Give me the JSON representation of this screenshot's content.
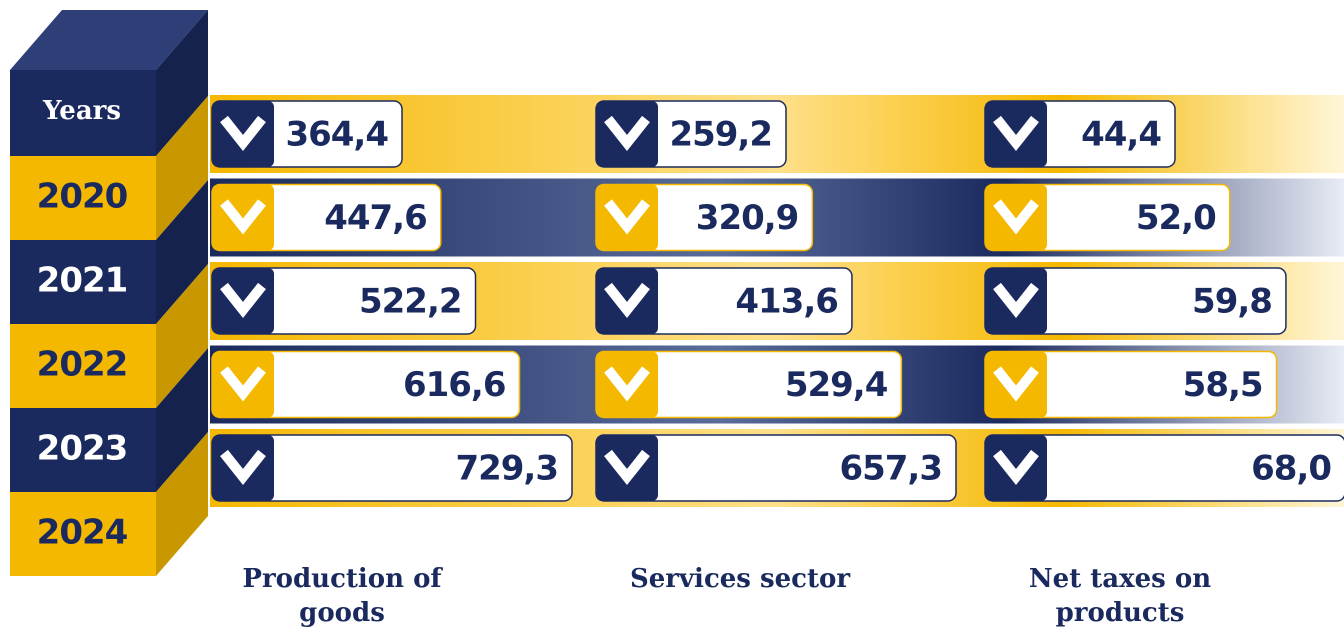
{
  "chart_data": {
    "type": "bar",
    "orientation": "horizontal",
    "header": "Years",
    "categories": [
      "2020",
      "2021",
      "2022",
      "2023",
      "2024"
    ],
    "series": [
      {
        "name": "Production of goods",
        "values": [
          364.4,
          447.6,
          522.2,
          616.6,
          729.3
        ],
        "value_labels": [
          "364,4",
          "447,6",
          "522,2",
          "616,6",
          "729,3"
        ]
      },
      {
        "name": "Services sector",
        "values": [
          259.2,
          320.9,
          413.6,
          529.4,
          657.3
        ],
        "value_labels": [
          "259,2",
          "320,9",
          "413,6",
          "529,4",
          "657,3"
        ]
      },
      {
        "name": "Net taxes on products",
        "values": [
          44.4,
          52.0,
          59.8,
          58.5,
          68.0
        ],
        "value_labels": [
          "44,4",
          "52,0",
          "59,8",
          "58,5",
          "68,0"
        ]
      }
    ]
  }
}
